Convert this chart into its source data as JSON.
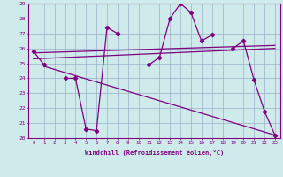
{
  "x": [
    0,
    1,
    2,
    3,
    4,
    5,
    6,
    7,
    8,
    9,
    10,
    11,
    12,
    13,
    14,
    15,
    16,
    17,
    18,
    19,
    20,
    21,
    22,
    23
  ],
  "windchill": [
    25.8,
    24.9,
    null,
    24.0,
    24.0,
    20.6,
    20.5,
    27.4,
    27.0,
    null,
    null,
    24.9,
    25.4,
    28.0,
    29.0,
    28.4,
    26.5,
    26.9,
    null,
    26.0,
    26.5,
    23.9,
    21.8,
    20.2
  ],
  "trend1_x": [
    0,
    23
  ],
  "trend1_y": [
    25.7,
    26.2
  ],
  "trend2_x": [
    0,
    23
  ],
  "trend2_y": [
    25.3,
    26.0
  ],
  "trend3_x": [
    1,
    23
  ],
  "trend3_y": [
    24.8,
    20.2
  ],
  "bg_color": "#ceeaea",
  "line_color": "#800080",
  "grid_color": "#9ab0c8",
  "xlabel": "Windchill (Refroidissement éolien,°C)",
  "ylim": [
    20,
    29
  ],
  "xlim": [
    -0.5,
    23.5
  ],
  "yticks": [
    20,
    21,
    22,
    23,
    24,
    25,
    26,
    27,
    28,
    29
  ],
  "xticks": [
    0,
    1,
    2,
    3,
    4,
    5,
    6,
    7,
    8,
    9,
    10,
    11,
    12,
    13,
    14,
    15,
    16,
    17,
    18,
    19,
    20,
    21,
    22,
    23
  ]
}
